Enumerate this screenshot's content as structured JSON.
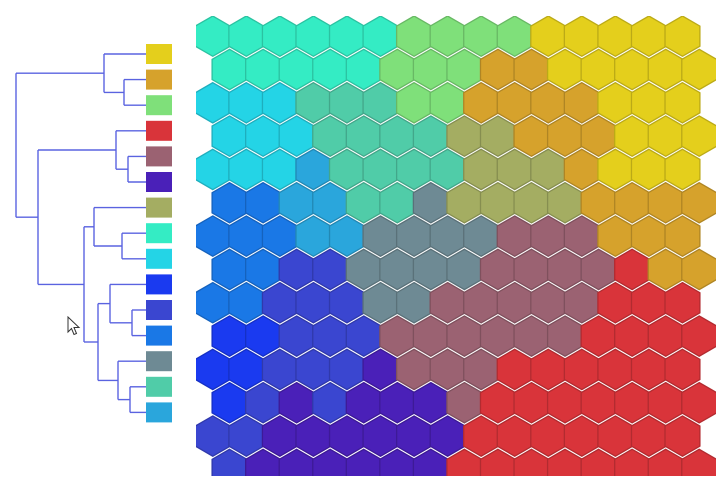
{
  "clusters": [
    {
      "id": "yellow",
      "color": "#e4cf1c"
    },
    {
      "id": "ochre",
      "color": "#d6a22c"
    },
    {
      "id": "lightgreen",
      "color": "#7fe07a"
    },
    {
      "id": "red",
      "color": "#d9343a"
    },
    {
      "id": "mauve",
      "color": "#9b6272"
    },
    {
      "id": "indigo",
      "color": "#4a20b8"
    },
    {
      "id": "olive",
      "color": "#a4ad62"
    },
    {
      "id": "aquamarine",
      "color": "#34ecc4"
    },
    {
      "id": "cyan",
      "color": "#24d4e6"
    },
    {
      "id": "blue",
      "color": "#1a3af0"
    },
    {
      "id": "slateblue",
      "color": "#3a46d0"
    },
    {
      "id": "azure",
      "color": "#1a78e6"
    },
    {
      "id": "gray",
      "color": "#6e8a94"
    },
    {
      "id": "seafoam",
      "color": "#50cca8"
    },
    {
      "id": "skyblue",
      "color": "#2aa6dc"
    }
  ],
  "grid": {
    "cols": 15,
    "rows": 14
  },
  "dendrogram": {
    "line_color": "#5a63e0"
  },
  "cursor": {
    "icon": "arrow-cursor-icon"
  }
}
